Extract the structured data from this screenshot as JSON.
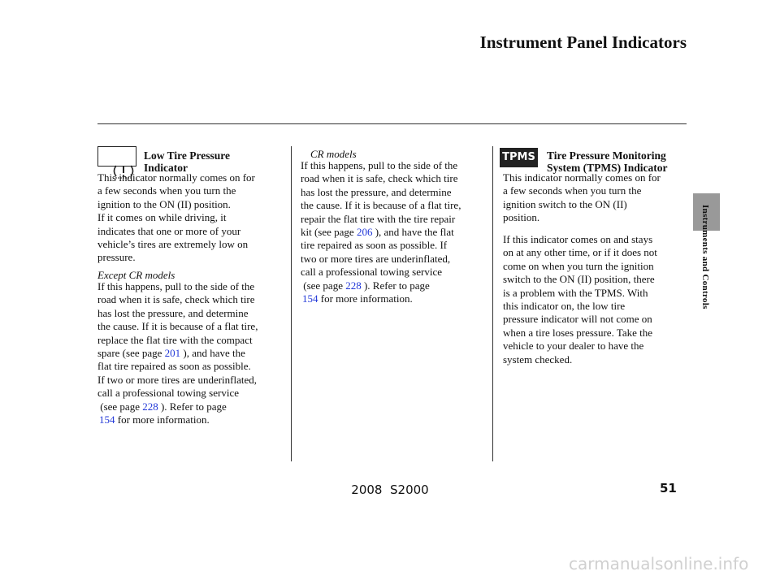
{
  "header": {
    "title": "Instrument Panel Indicators"
  },
  "side_tab": {
    "label": "Instruments and Controls"
  },
  "icons": {
    "tpms": "TPMS"
  },
  "columns": [
    {
      "heading": [
        "Low Tire Pressure",
        "Indicator"
      ],
      "blocks": [
        {
          "lines": [
            "This indicator normally comes on for",
            "a few seconds when you turn the",
            "ignition to the ON (II) position.",
            "If it comes on while driving, it",
            "indicates that one or more of your",
            "vehicle’s tires are extremely low on",
            "pressure."
          ]
        },
        {
          "note": "Except CR models",
          "lines": [
            "If this happens, pull to the side of the",
            "road when it is safe, check which tire",
            "has lost the pressure, and determine",
            "the cause. If it is because of a flat tire,",
            "replace the flat tire with the compact",
            {
              "before": "spare (see page ",
              "link": "201",
              "after": " ), and have the"
            },
            "flat tire repaired as soon as possible.",
            "If two or more tires are underinflated,",
            "call a professional towing service",
            {
              "before": " (see page ",
              "link": "228",
              "after": " ). Refer to page"
            },
            {
              "link": "154",
              "after": " for more information."
            }
          ]
        }
      ]
    },
    {
      "blocks": [
        {
          "note": "CR models",
          "lines": [
            "If this happens, pull to the side of the",
            "road when it is safe, check which tire",
            "has lost the pressure, and determine",
            "the cause. If it is because of a flat tire,",
            "repair the flat tire with the tire repair",
            {
              "before": "kit (see page ",
              "link": "206",
              "after": " ), and have the flat"
            },
            "tire repaired as soon as possible. If",
            "two or more tires are underinflated,",
            "call a professional towing service",
            {
              "before": " (see page ",
              "link": "228",
              "after": " ). Refer to page"
            },
            {
              "link": "154",
              "after": " for more information."
            }
          ]
        }
      ]
    },
    {
      "heading": [
        "Tire Pressure Monitoring",
        "System (TPMS) Indicator"
      ],
      "blocks": [
        {
          "lines": [
            "This indicator normally comes on for",
            "a few seconds when you turn the",
            "ignition switch to the ON (II)",
            "position."
          ]
        },
        {
          "lines": [
            "If this indicator comes on and stays",
            "on at any other time, or if it does not",
            "come on when you turn the ignition",
            "switch to the ON (II) position, there",
            "is a problem with the TPMS. With",
            "this indicator on, the low tire",
            "pressure indicator will not come on",
            "when a tire loses pressure. Take the",
            "vehicle to your dealer to have the",
            "system checked."
          ]
        }
      ]
    }
  ],
  "footer": {
    "page_number": "51",
    "model": "2008  S2000",
    "watermark": "carmanualsonline.info"
  }
}
